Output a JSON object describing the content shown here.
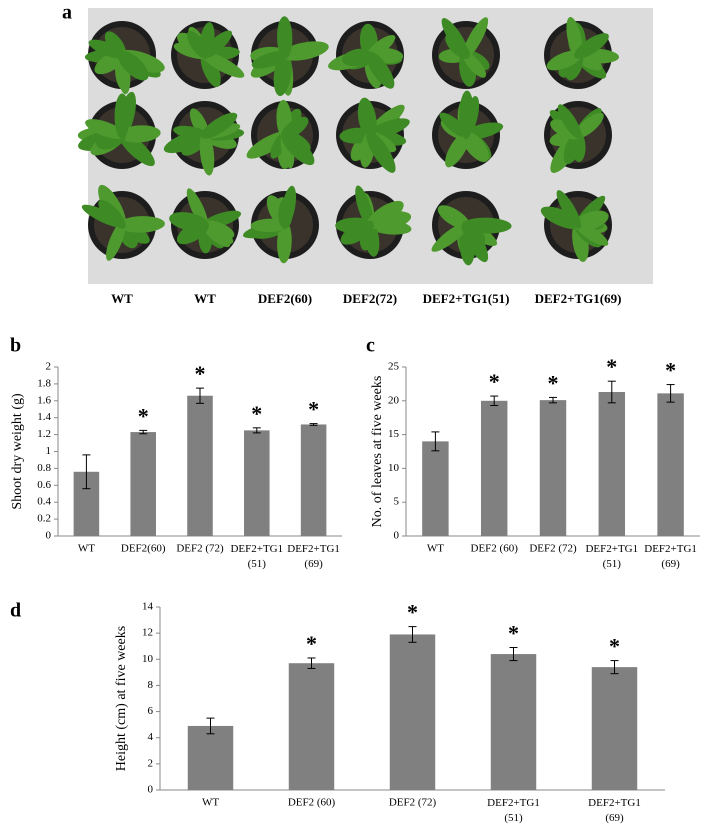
{
  "photo": {
    "label": "a",
    "captions": [
      "WT",
      "WT",
      "DEF2(60)",
      "DEF2(72)",
      "DEF2+TG1(51)",
      "DEF2+TG1(69)"
    ]
  },
  "chart_data": [
    {
      "type": "bar",
      "label": "b",
      "y_label": "Shoot dry weight (g)",
      "color": "#808080",
      "categories": [
        "WT",
        "DEF2(60)",
        "DEF2 (72)",
        "DEF2+TG1\n(51)",
        "DEF2+TG1\n(69)"
      ],
      "values": [
        0.76,
        1.23,
        1.66,
        1.25,
        1.32
      ],
      "errors": [
        0.2,
        0.02,
        0.09,
        0.03,
        0.01
      ],
      "significance": [
        null,
        "*",
        "*",
        "*",
        "*"
      ],
      "ylim": [
        0,
        2
      ],
      "yticks": [
        0,
        0.2,
        0.4,
        0.6,
        0.8,
        1,
        1.2,
        1.4,
        1.6,
        1.8,
        2
      ]
    },
    {
      "type": "bar",
      "label": "c",
      "y_label": "No. of leaves at five weeks",
      "color": "#808080",
      "categories": [
        "WT",
        "DEF2 (60)",
        "DEF2 (72)",
        "DEF2+TG1\n(51)",
        "DEF2+TG1\n(69)"
      ],
      "values": [
        14,
        20,
        20.1,
        21.3,
        21.1
      ],
      "errors": [
        1.4,
        0.7,
        0.4,
        1.6,
        1.3
      ],
      "significance": [
        null,
        "*",
        "*",
        "*",
        "*"
      ],
      "ylim": [
        0,
        25
      ],
      "yticks": [
        0,
        5,
        10,
        15,
        20,
        25
      ]
    },
    {
      "type": "bar",
      "label": "d",
      "y_label": "Height (cm) at five weeks",
      "color": "#808080",
      "categories": [
        "WT",
        "DEF2 (60)",
        "DEF2 (72)",
        "DEF2+TG1\n(51)",
        "DEF2+TG1\n(69)"
      ],
      "values": [
        4.9,
        9.7,
        11.9,
        10.4,
        9.4
      ],
      "errors": [
        0.6,
        0.4,
        0.6,
        0.5,
        0.5
      ],
      "significance": [
        null,
        "*",
        "*",
        "*",
        "*"
      ],
      "ylim": [
        0,
        14
      ],
      "yticks": [
        0,
        2,
        4,
        6,
        8,
        10,
        12,
        14
      ]
    }
  ]
}
